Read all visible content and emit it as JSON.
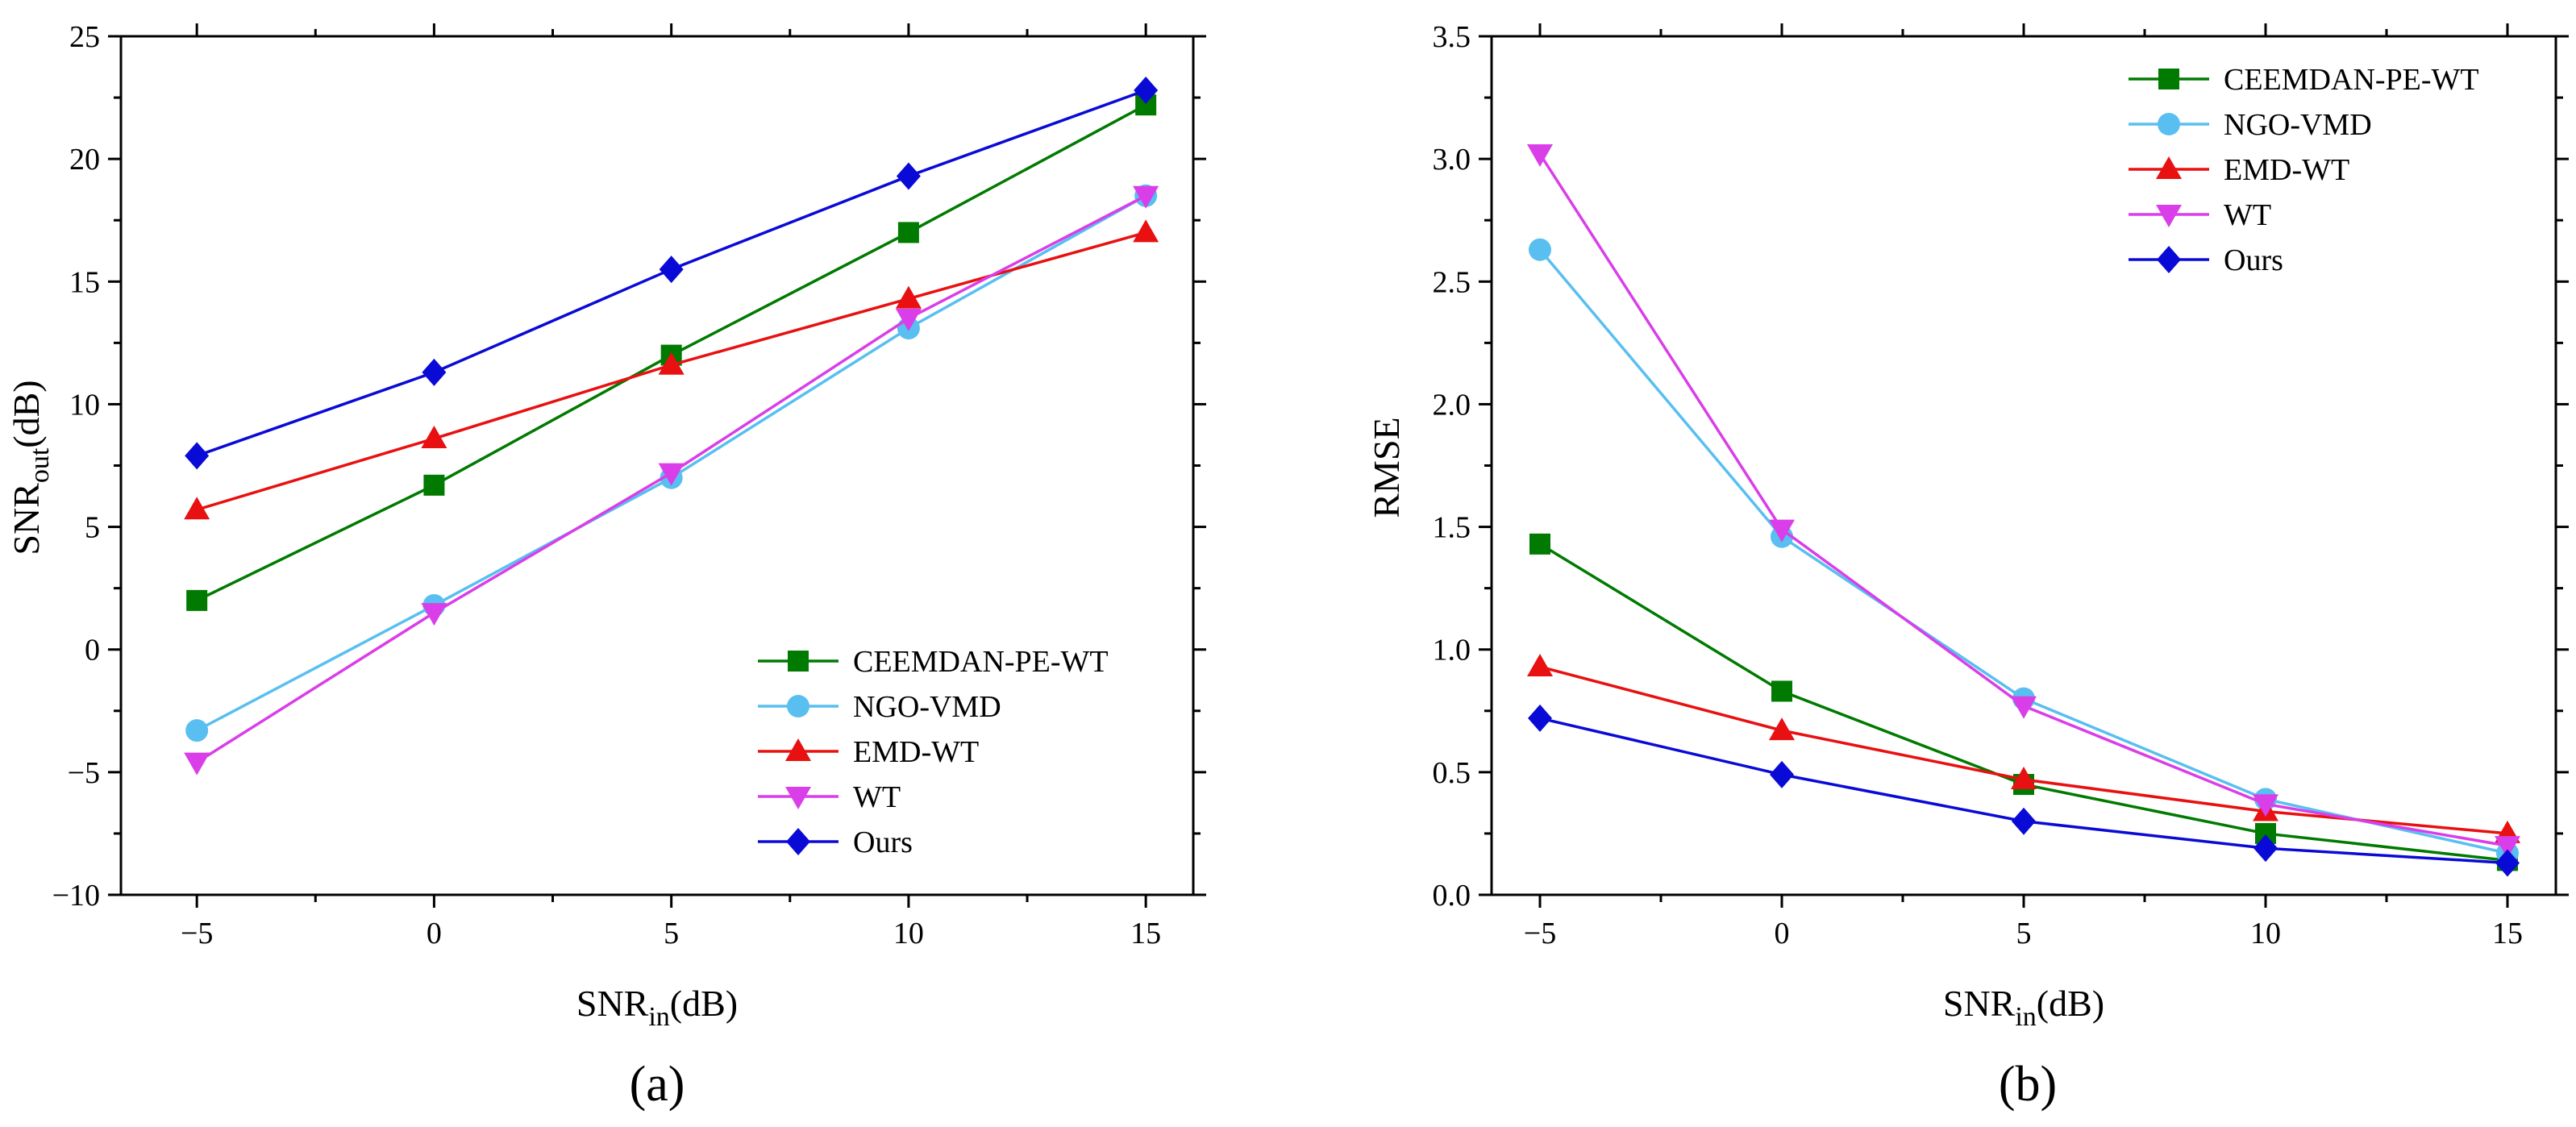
{
  "chart_data": [
    {
      "type": "line",
      "caption": "(a)",
      "xlabel": {
        "main": "SNR",
        "sub": "in",
        "unit": "(dB)"
      },
      "ylabel": {
        "main": "SNR",
        "sub": "out",
        "unit": "(dB)"
      },
      "x": [
        -5,
        0,
        5,
        10,
        15
      ],
      "xlim": [
        -6.6,
        16.0
      ],
      "ylim": [
        -10,
        25
      ],
      "xticks": [
        -5,
        0,
        5,
        10,
        15
      ],
      "xtick_labels": [
        "−5",
        "0",
        "5",
        "10",
        "15"
      ],
      "yticks": [
        -10,
        -5,
        0,
        5,
        10,
        15,
        20,
        25
      ],
      "ytick_labels": [
        "−10",
        "−5",
        "0",
        "5",
        "10",
        "15",
        "20",
        "25"
      ],
      "legend_position": "bottom-right",
      "series": [
        {
          "name": "CEEMDAN-PE-WT",
          "color": "#007a00",
          "marker": "square",
          "values": [
            2.0,
            6.7,
            12.0,
            17.0,
            22.2
          ]
        },
        {
          "name": "NGO-VMD",
          "color": "#58bff0",
          "marker": "circle",
          "values": [
            -3.3,
            1.8,
            7.0,
            13.1,
            18.5
          ]
        },
        {
          "name": "EMD-WT",
          "color": "#e81010",
          "marker": "triangle-up",
          "values": [
            5.7,
            8.6,
            11.6,
            14.3,
            17.0
          ]
        },
        {
          "name": "WT",
          "color": "#d93ee8",
          "marker": "triangle-down",
          "values": [
            -4.6,
            1.5,
            7.2,
            13.5,
            18.5
          ]
        },
        {
          "name": "Ours",
          "color": "#0a0ad6",
          "marker": "diamond",
          "values": [
            7.9,
            11.3,
            15.5,
            19.3,
            22.8
          ]
        }
      ]
    },
    {
      "type": "line",
      "caption": "(b)",
      "xlabel": {
        "main": "SNR",
        "sub": "in",
        "unit": "(dB)"
      },
      "ylabel": {
        "main": "RMSE",
        "sub": "",
        "unit": ""
      },
      "x": [
        -5,
        0,
        5,
        10,
        15
      ],
      "xlim": [
        -6.0,
        16.0
      ],
      "ylim": [
        0,
        3.5
      ],
      "xticks": [
        -5,
        0,
        5,
        10,
        15
      ],
      "xtick_labels": [
        "−5",
        "0",
        "5",
        "10",
        "15"
      ],
      "yticks": [
        0,
        0.5,
        1.0,
        1.5,
        2.0,
        2.5,
        3.0,
        3.5
      ],
      "ytick_labels": [
        "0.0",
        "0.5",
        "1.0",
        "1.5",
        "2.0",
        "2.5",
        "3.0",
        "3.5"
      ],
      "legend_position": "top-right",
      "series": [
        {
          "name": "CEEMDAN-PE-WT",
          "color": "#007a00",
          "marker": "square",
          "values": [
            1.43,
            0.83,
            0.45,
            0.25,
            0.14
          ]
        },
        {
          "name": "NGO-VMD",
          "color": "#58bff0",
          "marker": "circle",
          "values": [
            2.63,
            1.46,
            0.8,
            0.39,
            0.17
          ]
        },
        {
          "name": "EMD-WT",
          "color": "#e81010",
          "marker": "triangle-up",
          "values": [
            0.93,
            0.67,
            0.47,
            0.34,
            0.25
          ]
        },
        {
          "name": "WT",
          "color": "#d93ee8",
          "marker": "triangle-down",
          "values": [
            3.02,
            1.49,
            0.77,
            0.37,
            0.2
          ]
        },
        {
          "name": "Ours",
          "color": "#0a0ad6",
          "marker": "diamond",
          "values": [
            0.72,
            0.49,
            0.3,
            0.19,
            0.13
          ]
        }
      ]
    }
  ]
}
